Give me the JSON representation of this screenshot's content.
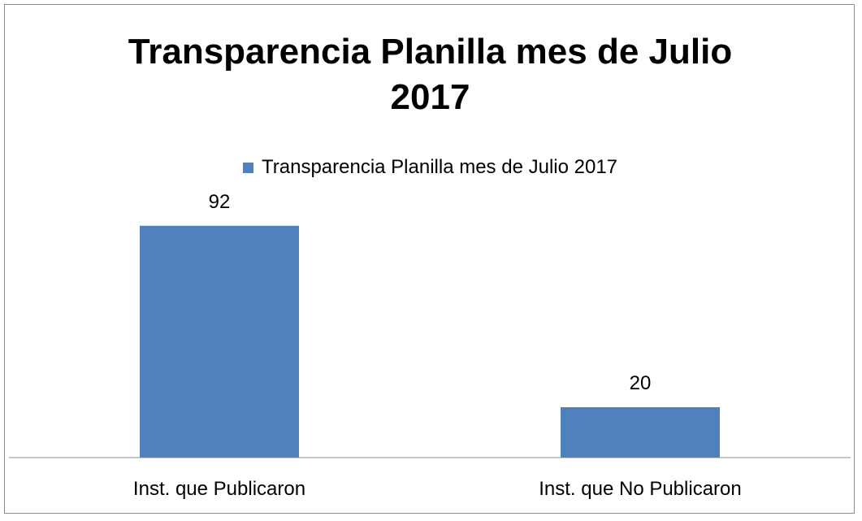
{
  "chart_data": {
    "type": "bar",
    "title": "Transparencia Planilla mes de Julio 2017",
    "title_lines": [
      "Transparencia Planilla mes de Julio",
      "2017"
    ],
    "categories": [
      "Inst. que Publicaron",
      "Inst. que No Publicaron"
    ],
    "series": [
      {
        "name": "Transparencia Planilla mes de Julio 2017",
        "values": [
          92,
          20
        ],
        "color": "#4f81bd"
      }
    ],
    "data_labels": [
      "92",
      "20"
    ],
    "ylim": [
      0,
      100
    ],
    "grid": false,
    "legend_position": "top",
    "axis_color": "#8c8c8c"
  }
}
